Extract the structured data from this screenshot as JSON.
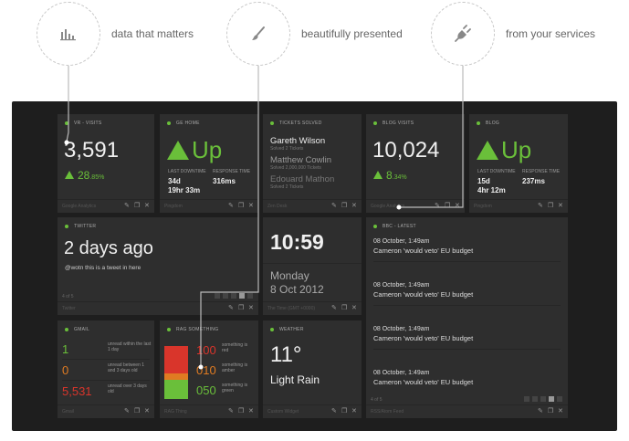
{
  "features": [
    {
      "icon": "bar-chart-icon",
      "text": "data that matters"
    },
    {
      "icon": "brush-icon",
      "text": "beautifully presented"
    },
    {
      "icon": "plug-icon",
      "text": "from your services"
    }
  ],
  "accent": "#6abf3a",
  "tiles": {
    "visits": {
      "title": "VR - VISITS",
      "value": "3,591",
      "change": "28",
      "change_dec": ".85%",
      "source": "Google Analytics"
    },
    "gehome": {
      "title": "GE HOME",
      "status": "Up",
      "downtime_label": "LAST DOWNTIME",
      "response_label": "RESPONSE TIME",
      "downtime_line1": "34d",
      "downtime_line2": "19hr 33m",
      "response": "316ms",
      "source": "Pingdom"
    },
    "tickets": {
      "title": "TICKETS SOLVED",
      "items": [
        {
          "name": "Gareth Wilson",
          "sub": "Solved 2 Tickets"
        },
        {
          "name": "Matthew Cowlin",
          "sub": "Solved 2,000,000 Tickets"
        },
        {
          "name": "Edouard Mathon",
          "sub": "Solved 2 Tickets"
        }
      ],
      "source": "Zen Desk"
    },
    "blogvisits": {
      "title": "BLOG VISITS",
      "value": "10,024",
      "change": "8",
      "change_dec": ".34%",
      "source": "Google Analytics"
    },
    "blog": {
      "title": "BLOG",
      "status": "Up",
      "downtime_label": "LAST DOWNTIME",
      "response_label": "RESPONSE TIME",
      "downtime_line1": "15d",
      "downtime_line2": "4hr 12m",
      "response": "237ms",
      "source": "Pingdom"
    },
    "twitter": {
      "title": "TWITTER",
      "headline": "2 days ago",
      "tweet": "@wotn this is a tweet in here",
      "pager_label": "4 of 5",
      "source": "Twitter"
    },
    "clock": {
      "time": "10:59",
      "day": "Monday",
      "date": "8 Oct 2012",
      "source": "The Time (GMT +0000)"
    },
    "bbc": {
      "title": "BBC - LATEST",
      "items": [
        {
          "date": "08 October, 1:49am",
          "title": "Cameron 'would veto' EU budget"
        },
        {
          "date": "08 October, 1:49am",
          "title": "Cameron 'would veto' EU budget"
        },
        {
          "date": "08 October, 1:49am",
          "title": "Cameron 'would veto' EU budget"
        },
        {
          "date": "08 October, 1:49am",
          "title": "Cameron 'would veto' EU budget"
        }
      ],
      "pager_label": "4 of 5",
      "source": "RSS/Atom Feed"
    },
    "gmail": {
      "title": "GMAIL",
      "rows": [
        {
          "value": "1",
          "label": "unread within the last 1 day",
          "color": "#6abf3a"
        },
        {
          "value": "0",
          "label": "unread between 1 and 3 days old",
          "color": "#e07b22"
        },
        {
          "value": "5,531",
          "label": "unread over 3 days old",
          "color": "#d9352b"
        }
      ],
      "source": "Gmail"
    },
    "rag": {
      "title": "RAG SOMETHING",
      "rows": [
        {
          "value": "100",
          "label": "something is red",
          "color": "#d9352b"
        },
        {
          "value": "010",
          "label": "something is amber",
          "color": "#e07b22"
        },
        {
          "value": "050",
          "label": "something is green",
          "color": "#6abf3a"
        }
      ],
      "source": "RAG Thing"
    },
    "weather": {
      "title": "WEATHER",
      "temp": "11°",
      "condition": "Light Rain",
      "source": "Custom Widget"
    }
  }
}
